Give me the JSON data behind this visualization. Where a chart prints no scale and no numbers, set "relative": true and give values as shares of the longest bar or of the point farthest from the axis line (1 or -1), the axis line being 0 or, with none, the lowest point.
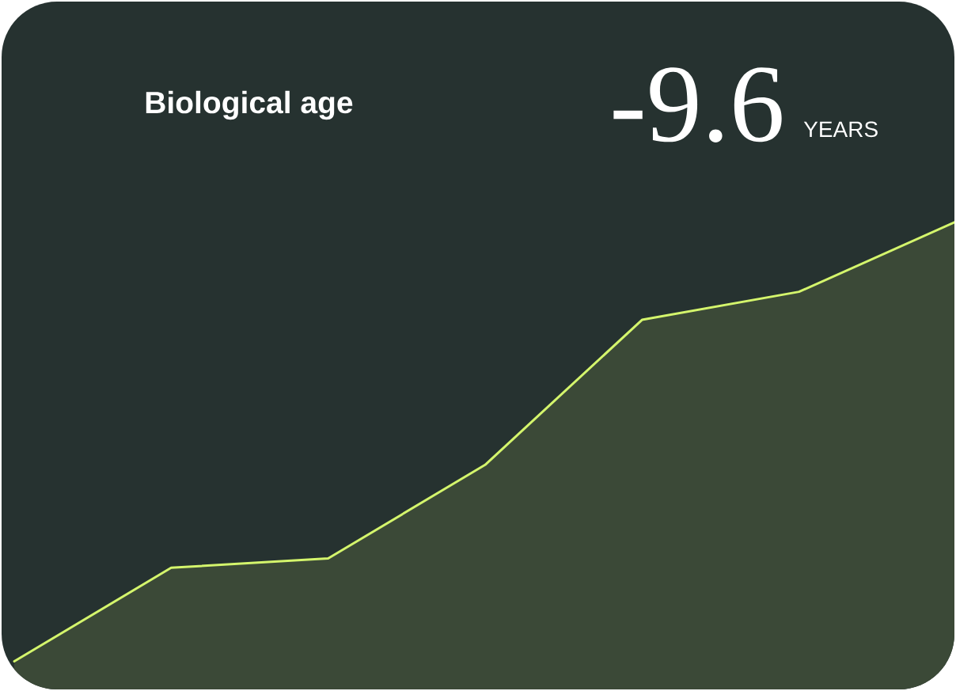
{
  "chart_data": {
    "type": "area",
    "title": "Biological age",
    "annotations": [
      "-9.6",
      "YEARS"
    ],
    "relative": true,
    "categories": [
      null,
      null,
      null,
      null,
      null,
      null,
      null
    ],
    "values": [
      0.06,
      0.26,
      0.28,
      0.48,
      0.79,
      0.85,
      1
    ],
    "color": "#d4f56c"
  }
}
